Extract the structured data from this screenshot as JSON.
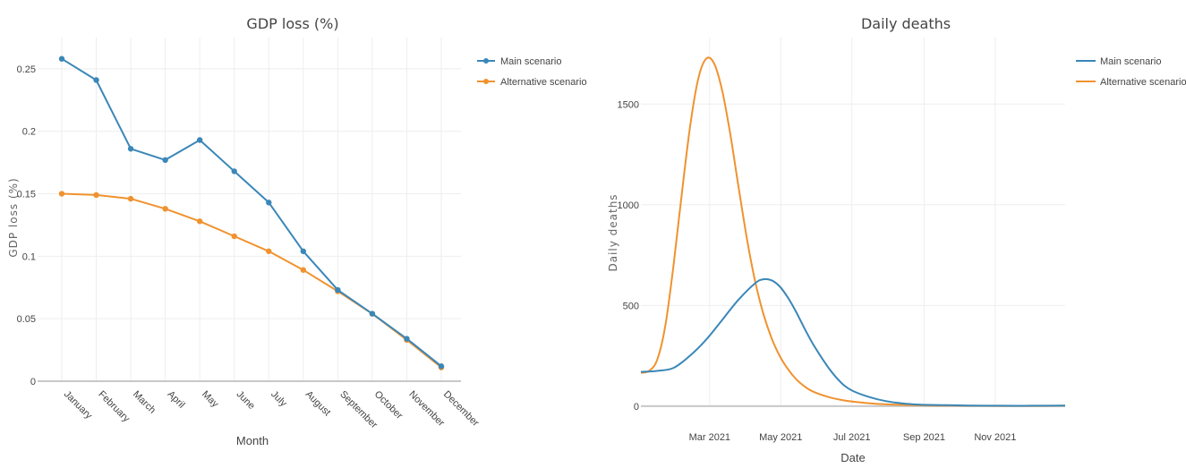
{
  "colors": {
    "main": "#3a87b8",
    "alternative": "#f0922f"
  },
  "chart_data": [
    {
      "type": "line",
      "title": "GDP loss (%)",
      "xlabel": "Month",
      "ylabel": "GDP loss (%)",
      "categories": [
        "January",
        "February",
        "March",
        "April",
        "May",
        "June",
        "July",
        "August",
        "September",
        "October",
        "November",
        "December"
      ],
      "yticks": [
        0,
        0.05,
        0.1,
        0.15,
        0.2,
        0.25
      ],
      "ytick_labels": [
        "0",
        "0.05",
        "0.1",
        "0.15",
        "0.2",
        "0.25"
      ],
      "ylim": [
        0,
        0.275
      ],
      "markers": true,
      "grid": true,
      "legend_position": "top-right",
      "series": [
        {
          "name": "Main scenario",
          "color": "#3a87b8",
          "values": [
            0.258,
            0.241,
            0.186,
            0.177,
            0.193,
            0.168,
            0.143,
            0.104,
            0.073,
            0.054,
            0.034,
            0.012
          ]
        },
        {
          "name": "Alternative scenario",
          "color": "#f0922f",
          "values": [
            0.15,
            0.149,
            0.146,
            0.138,
            0.128,
            0.116,
            0.104,
            0.089,
            0.072,
            0.054,
            0.033,
            0.011
          ]
        }
      ]
    },
    {
      "type": "line",
      "title": "Daily deaths",
      "xlabel": "Date",
      "ylabel": "Daily deaths",
      "x_range": [
        "2021-01-01",
        "2021-12-31"
      ],
      "xticks": [
        "2021-03-01",
        "2021-05-01",
        "2021-07-01",
        "2021-09-01",
        "2021-11-01"
      ],
      "xtick_labels": [
        "Mar 2021",
        "May 2021",
        "Jul 2021",
        "Sep 2021",
        "Nov 2021"
      ],
      "yticks": [
        0,
        500,
        1000,
        1500
      ],
      "ytick_labels": [
        "0",
        "500",
        "1000",
        "1500"
      ],
      "ylim": [
        -5,
        1830
      ],
      "markers": false,
      "grid": true,
      "legend_position": "top-right",
      "series": [
        {
          "name": "Main scenario",
          "color": "#3a87b8",
          "points": [
            [
              "2021-01-01",
              170
            ],
            [
              "2021-01-15",
              175
            ],
            [
              "2021-01-29",
              190
            ],
            [
              "2021-02-12",
              250
            ],
            [
              "2021-02-26",
              330
            ],
            [
              "2021-03-12",
              430
            ],
            [
              "2021-03-26",
              530
            ],
            [
              "2021-04-09",
              610
            ],
            [
              "2021-04-16",
              630
            ],
            [
              "2021-04-23",
              625
            ],
            [
              "2021-04-30",
              595
            ],
            [
              "2021-05-07",
              540
            ],
            [
              "2021-05-14",
              470
            ],
            [
              "2021-05-21",
              390
            ],
            [
              "2021-05-28",
              315
            ],
            [
              "2021-06-04",
              250
            ],
            [
              "2021-06-11",
              190
            ],
            [
              "2021-06-18",
              140
            ],
            [
              "2021-06-25",
              100
            ],
            [
              "2021-07-02",
              75
            ],
            [
              "2021-07-16",
              45
            ],
            [
              "2021-07-30",
              25
            ],
            [
              "2021-08-13",
              14
            ],
            [
              "2021-08-27",
              8
            ],
            [
              "2021-09-17",
              5
            ],
            [
              "2021-10-08",
              3
            ],
            [
              "2021-11-05",
              2
            ],
            [
              "2021-12-03",
              2
            ],
            [
              "2021-12-31",
              3
            ]
          ]
        },
        {
          "name": "Alternative scenario",
          "color": "#f0922f",
          "points": [
            [
              "2021-01-01",
              165
            ],
            [
              "2021-01-08",
              175
            ],
            [
              "2021-01-15",
              230
            ],
            [
              "2021-01-22",
              400
            ],
            [
              "2021-01-29",
              700
            ],
            [
              "2021-02-05",
              1050
            ],
            [
              "2021-02-12",
              1380
            ],
            [
              "2021-02-19",
              1620
            ],
            [
              "2021-02-26",
              1725
            ],
            [
              "2021-03-05",
              1700
            ],
            [
              "2021-03-12",
              1560
            ],
            [
              "2021-03-19",
              1340
            ],
            [
              "2021-03-26",
              1080
            ],
            [
              "2021-04-02",
              830
            ],
            [
              "2021-04-09",
              620
            ],
            [
              "2021-04-16",
              460
            ],
            [
              "2021-04-23",
              340
            ],
            [
              "2021-04-30",
              250
            ],
            [
              "2021-05-07",
              185
            ],
            [
              "2021-05-14",
              135
            ],
            [
              "2021-05-21",
              100
            ],
            [
              "2021-05-28",
              74
            ],
            [
              "2021-06-11",
              45
            ],
            [
              "2021-06-25",
              28
            ],
            [
              "2021-07-09",
              18
            ],
            [
              "2021-07-23",
              11
            ],
            [
              "2021-08-13",
              6
            ],
            [
              "2021-09-10",
              3
            ],
            [
              "2021-10-08",
              2
            ],
            [
              "2021-11-05",
              1
            ],
            [
              "2021-12-03",
              1
            ],
            [
              "2021-12-31",
              2
            ]
          ]
        }
      ]
    }
  ]
}
